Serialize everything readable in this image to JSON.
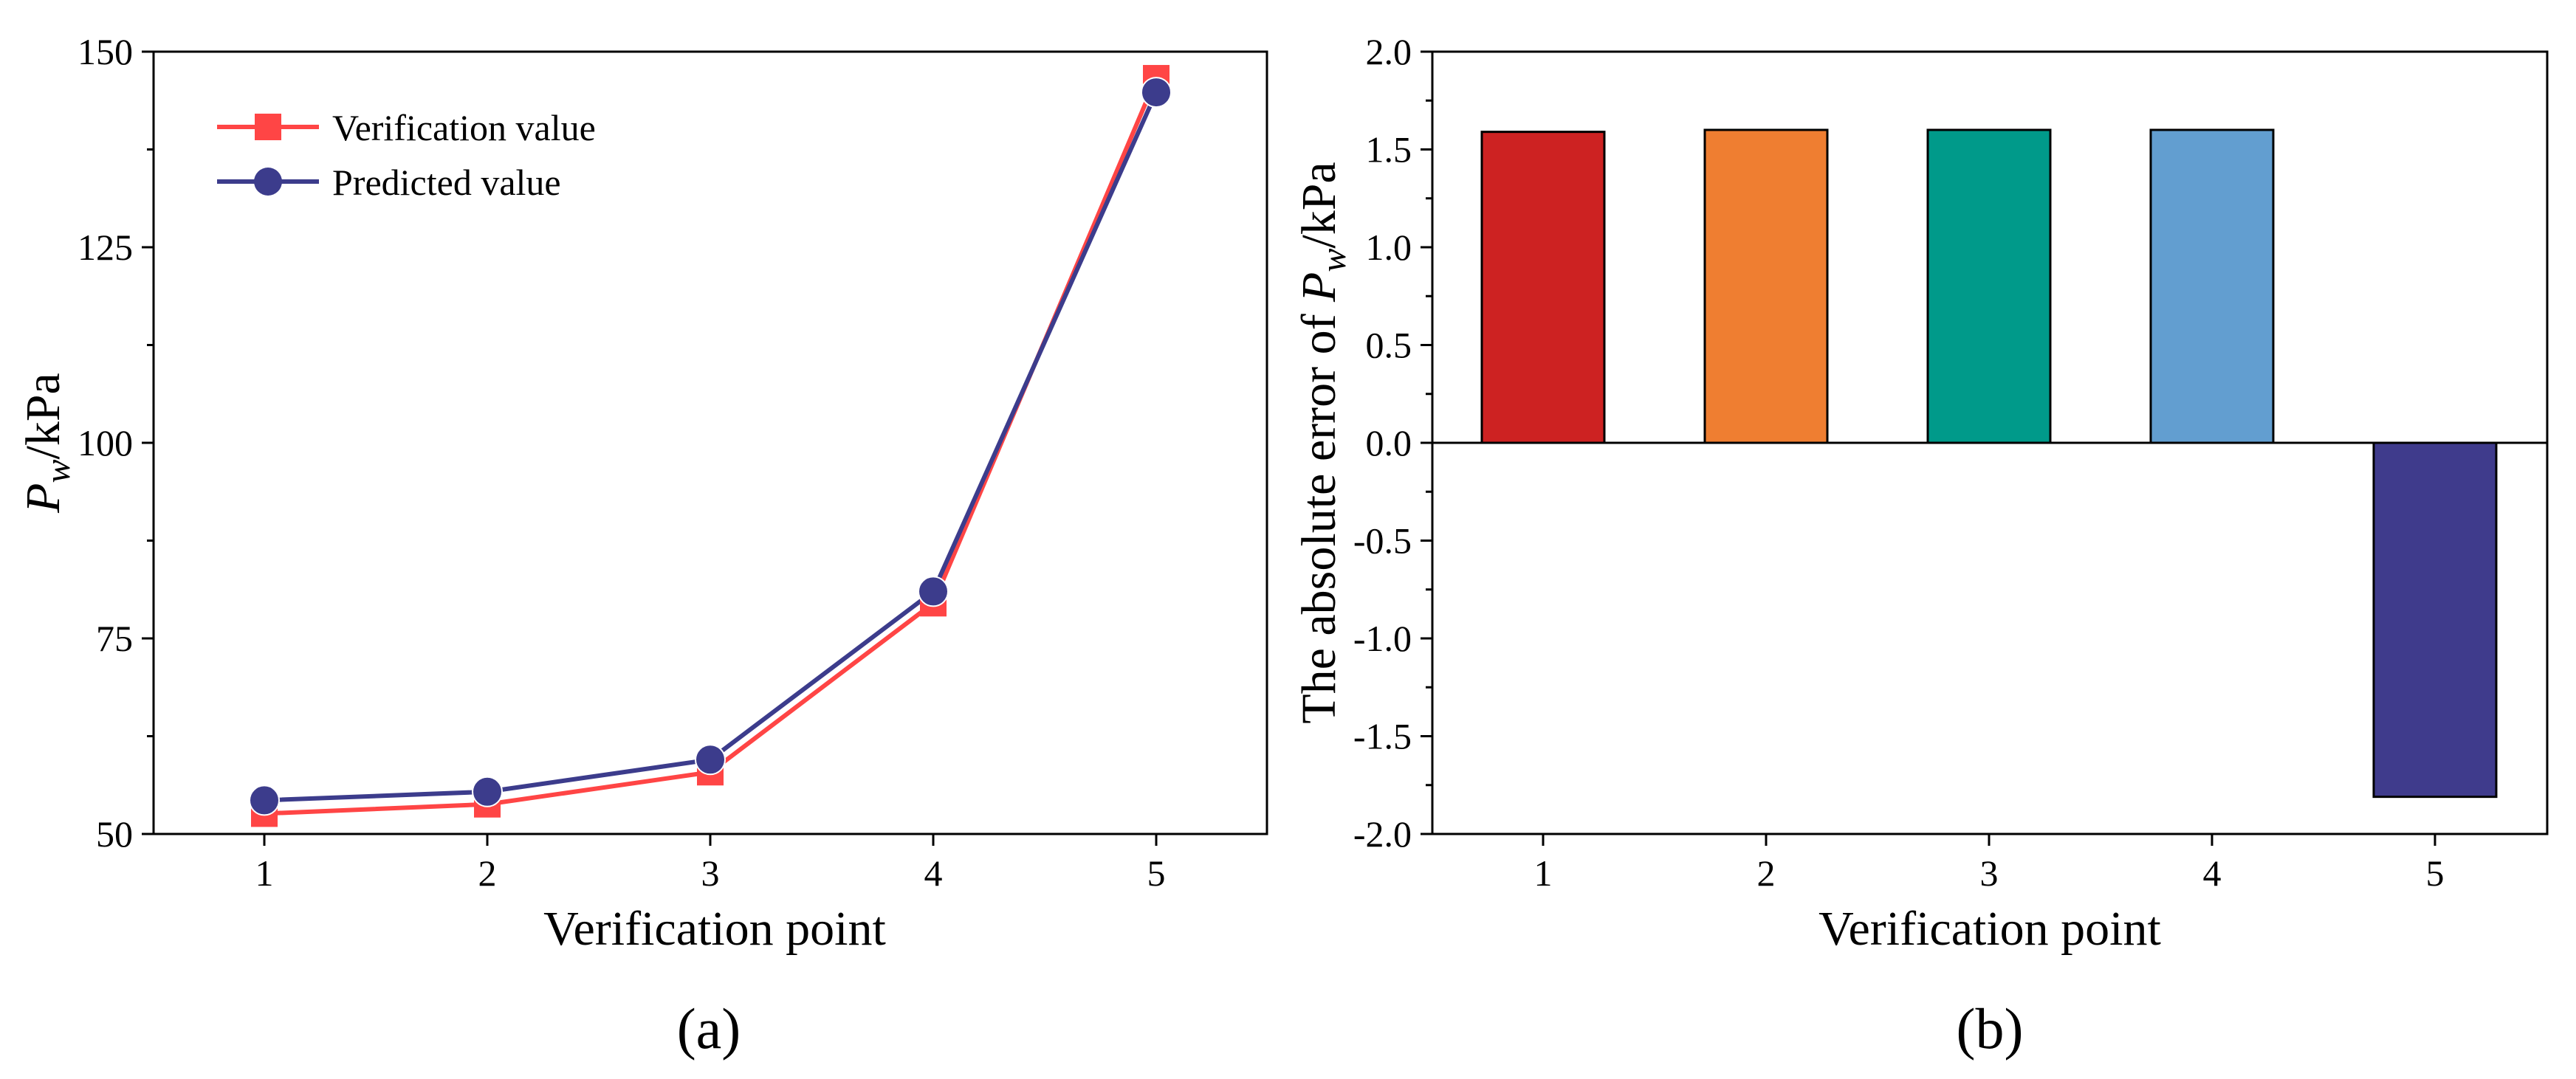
{
  "chart_data": [
    {
      "type": "line",
      "panel_label": "(a)",
      "xlabel": "Verification point",
      "ylabel_var": "P",
      "ylabel_sub": "w",
      "ylabel_unit": "/kPa",
      "categories": [
        "1",
        "2",
        "3",
        "4",
        "5"
      ],
      "ylim": [
        50,
        150
      ],
      "yticks": [
        "50",
        "75",
        "100",
        "125",
        "150"
      ],
      "ytick_values": [
        50,
        75,
        100,
        125,
        150
      ],
      "series": [
        {
          "name": "Verification value",
          "color": "#ff4545",
          "marker": "square",
          "values": [
            52.6,
            53.8,
            57.9,
            79.5,
            146.6
          ]
        },
        {
          "name": "Predicted value",
          "color": "#3c3c8c",
          "marker": "circle",
          "values": [
            54.3,
            55.4,
            59.5,
            81.0,
            144.8
          ]
        }
      ],
      "legend_position": "top-left"
    },
    {
      "type": "bar",
      "panel_label": "(b)",
      "xlabel": "Verification point",
      "ylabel_prefix": "The absolute error of ",
      "ylabel_var": "P",
      "ylabel_sub": "w",
      "ylabel_unit": "/kPa",
      "categories": [
        "1",
        "2",
        "3",
        "4",
        "5"
      ],
      "values": [
        1.59,
        1.6,
        1.6,
        1.6,
        -1.81
      ],
      "colors": [
        "#cd2222",
        "#ef7e31",
        "#009a8a",
        "#629ed0",
        "#3f3b8c"
      ],
      "ylim": [
        -2.0,
        2.0
      ],
      "yticks": [
        "-2.0",
        "-1.5",
        "-1.0",
        "-0.5",
        "0.0",
        "0.5",
        "1.0",
        "1.5",
        "2.0"
      ],
      "ytick_values": [
        -2.0,
        -1.5,
        -1.0,
        -0.5,
        0.0,
        0.5,
        1.0,
        1.5,
        2.0
      ]
    }
  ]
}
